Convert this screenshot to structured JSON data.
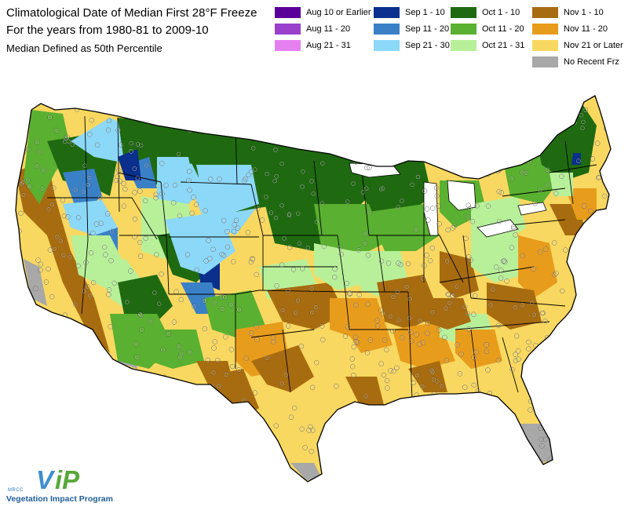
{
  "title": {
    "line1": "Climatological Date of Median First 28°F Freeze",
    "line2": "For the years from 1980-81 to 2009-10",
    "subtitle": "Median Defined as 50th Percentile"
  },
  "legend": [
    {
      "label": "Aug 10 or Earlier",
      "color": "#5a0099"
    },
    {
      "label": "Aug 11 - 20",
      "color": "#9a40cc"
    },
    {
      "label": "Aug 21 - 31",
      "color": "#e680f0"
    },
    {
      "label": "Sep 1 - 10",
      "color": "#0a2f8c"
    },
    {
      "label": "Sep 11 - 20",
      "color": "#3a80c6"
    },
    {
      "label": "Sep 21 - 30",
      "color": "#8cd8f8"
    },
    {
      "label": "Oct 1 - 10",
      "color": "#1f6a10"
    },
    {
      "label": "Oct 11 - 20",
      "color": "#5ab030"
    },
    {
      "label": "Oct 21 - 31",
      "color": "#b8f09a"
    },
    {
      "label": "Nov 1 - 10",
      "color": "#a86c10"
    },
    {
      "label": "Nov 11 - 20",
      "color": "#e89c1c"
    },
    {
      "label": "Nov 21 or Later",
      "color": "#f8d860"
    },
    {
      "label": "No Recent Frz",
      "color": "#a8a8a8"
    }
  ],
  "logo": {
    "mark_v": "V",
    "mark_ip": "iP",
    "org": "MRCC",
    "name": "Vegetation Impact Program"
  },
  "colors": {
    "state_border": "#000000",
    "station_marker": "#ffffff"
  }
}
